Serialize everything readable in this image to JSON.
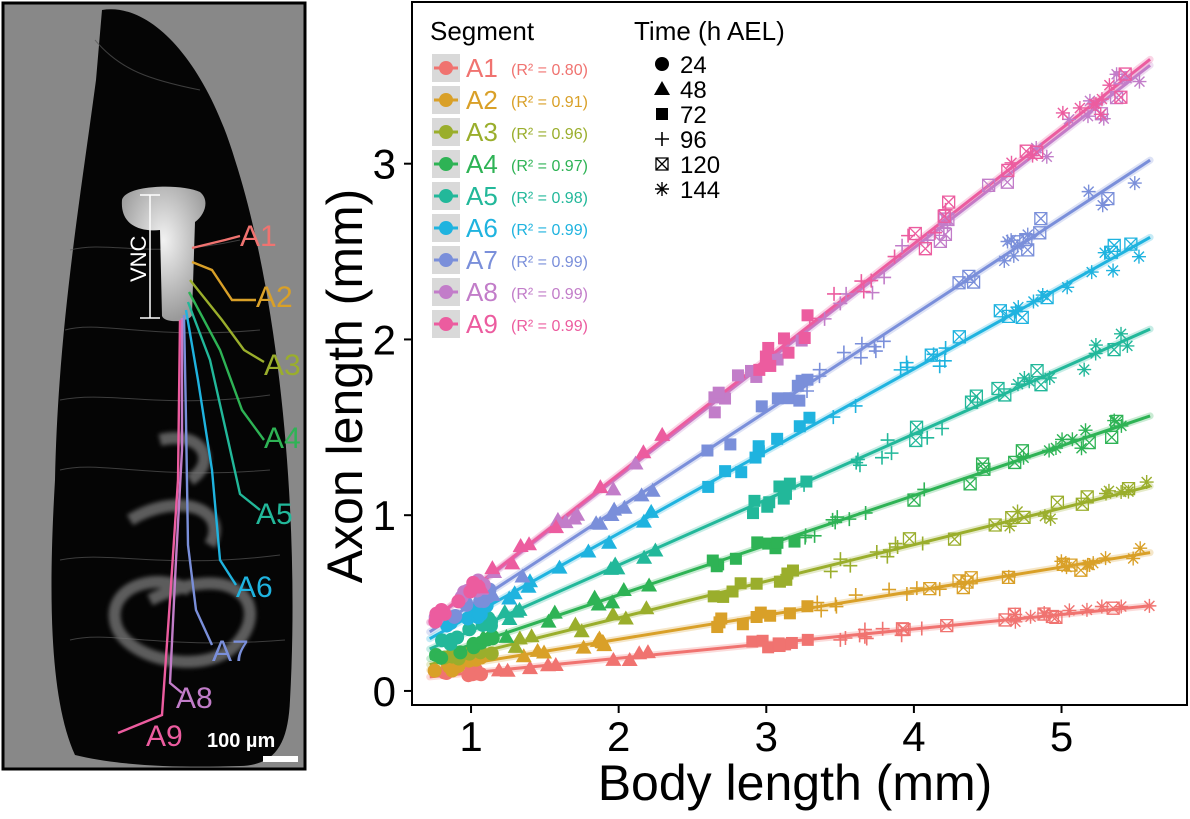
{
  "image_panel": {
    "vnc_label": "VNC",
    "scale_bar_label": "100 µm",
    "segment_labels": [
      "A1",
      "A2",
      "A3",
      "A4",
      "A5",
      "A6",
      "A7",
      "A8",
      "A9"
    ]
  },
  "chart_data": {
    "type": "scatter",
    "xlabel": "Body length (mm)",
    "ylabel": "Axon length (mm)",
    "xlim": [
      0.6,
      5.85
    ],
    "ylim": [
      -0.08,
      3.92
    ],
    "x_ticks": [
      1,
      2,
      3,
      4,
      5
    ],
    "y_ticks": [
      0,
      1,
      2,
      3
    ],
    "legend_segment_title": "Segment",
    "legend_time_title": "Time (h AEL)",
    "time_points": [
      {
        "label": "24",
        "shape": "circle",
        "body_range": [
          0.75,
          1.15
        ]
      },
      {
        "label": "48",
        "shape": "triangle",
        "body_range": [
          1.05,
          2.3
        ]
      },
      {
        "label": "72",
        "shape": "square",
        "body_range": [
          2.6,
          3.3
        ]
      },
      {
        "label": "96",
        "shape": "plus",
        "body_range": [
          3.25,
          4.25
        ]
      },
      {
        "label": "120",
        "shape": "boxx",
        "body_range": [
          3.9,
          5.5
        ]
      },
      {
        "label": "144",
        "shape": "star",
        "body_range": [
          4.6,
          5.6
        ]
      }
    ],
    "series": [
      {
        "name": "A1",
        "r2": "(R² = 0.80)",
        "color": "#F07370",
        "intercept": 0.02,
        "slope": 0.083
      },
      {
        "name": "A2",
        "r2": "(R² = 0.91)",
        "color": "#D9A028",
        "intercept": 0.02,
        "slope": 0.137
      },
      {
        "name": "A3",
        "r2": "(R² = 0.96)",
        "color": "#9AAE2C",
        "intercept": 0.0,
        "slope": 0.208
      },
      {
        "name": "A4",
        "r2": "(R² = 0.97)",
        "color": "#2EB355",
        "intercept": -0.02,
        "slope": 0.283
      },
      {
        "name": "A5",
        "r2": "(R² = 0.98)",
        "color": "#22B89A",
        "intercept": -0.03,
        "slope": 0.373
      },
      {
        "name": "A6",
        "r2": "(R² = 0.99)",
        "color": "#1FB3DF",
        "intercept": -0.04,
        "slope": 0.468
      },
      {
        "name": "A7",
        "r2": "(R² = 0.99)",
        "color": "#7A8FDA",
        "intercept": -0.06,
        "slope": 0.55
      },
      {
        "name": "A8",
        "r2": "(R² = 0.99)",
        "color": "#C27DC9",
        "intercept": -0.08,
        "slope": 0.65
      },
      {
        "name": "A9",
        "r2": "(R² = 0.99)",
        "color": "#EC5C9F",
        "intercept": -0.08,
        "slope": 0.656
      }
    ]
  }
}
